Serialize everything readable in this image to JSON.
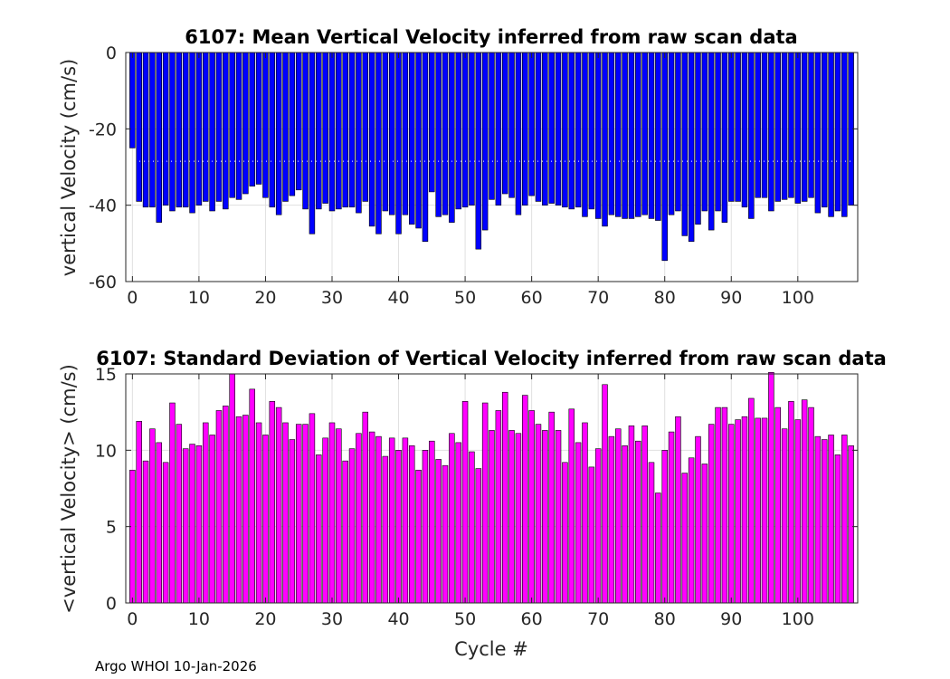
{
  "footer": "Argo WHOI 10-Jan-2026",
  "chart_data": [
    {
      "type": "bar",
      "title": "6107: Mean Vertical Velocity inferred from raw scan data",
      "xlabel": "",
      "ylabel": "vertical Velocity (cm/s)",
      "xlim": [
        -1,
        109
      ],
      "ylim": [
        -60,
        0
      ],
      "xticks": [
        0,
        10,
        20,
        30,
        40,
        50,
        60,
        70,
        80,
        90,
        100
      ],
      "yticks": [
        -60,
        -40,
        -20,
        0
      ],
      "grid": true,
      "bar_color": "#0000ff",
      "reference_line": -28.5,
      "x": [
        0,
        1,
        2,
        3,
        4,
        5,
        6,
        7,
        8,
        9,
        10,
        11,
        12,
        13,
        14,
        15,
        16,
        17,
        18,
        19,
        20,
        21,
        22,
        23,
        24,
        25,
        26,
        27,
        28,
        29,
        30,
        31,
        32,
        33,
        34,
        35,
        36,
        37,
        38,
        39,
        40,
        41,
        42,
        43,
        44,
        45,
        46,
        47,
        48,
        49,
        50,
        51,
        52,
        53,
        54,
        55,
        56,
        57,
        58,
        59,
        60,
        61,
        62,
        63,
        64,
        65,
        66,
        67,
        68,
        69,
        70,
        71,
        72,
        73,
        74,
        75,
        76,
        77,
        78,
        79,
        80,
        81,
        82,
        83,
        84,
        85,
        86,
        87,
        88,
        89,
        90,
        91,
        92,
        93,
        94,
        95,
        96,
        97,
        98,
        99,
        100,
        101,
        102,
        103,
        104,
        105,
        106,
        107,
        108
      ],
      "values": [
        -25,
        -39,
        -40.5,
        -40.5,
        -44.5,
        -40,
        -41.5,
        -40.5,
        -40.5,
        -42,
        -40,
        -39,
        -41.5,
        -39,
        -41,
        -38,
        -38.5,
        -37,
        -35,
        -34.5,
        -38,
        -40.5,
        -42.5,
        -39,
        -37.5,
        -36,
        -41,
        -47.5,
        -41,
        -39.5,
        -41.5,
        -41,
        -40.5,
        -40.5,
        -42,
        -39,
        -45.5,
        -47.5,
        -41.5,
        -42.5,
        -47.5,
        -42.5,
        -45,
        -46,
        -49.5,
        -36.5,
        -43,
        -42.5,
        -44.5,
        -41,
        -40.5,
        -40,
        -51.5,
        -46.5,
        -38.5,
        -40,
        -37,
        -38,
        -42.5,
        -40,
        -37.5,
        -39,
        -40,
        -39.5,
        -40,
        -40.5,
        -41,
        -40.5,
        -43,
        -41,
        -43.5,
        -45.5,
        -42.5,
        -43,
        -43.5,
        -43.5,
        -43,
        -42.5,
        -43.5,
        -44,
        -54.5,
        -42.5,
        -41.5,
        -48,
        -49.5,
        -45,
        -41.5,
        -46.5,
        -41.5,
        -44.5,
        -39,
        -39,
        -40.5,
        -43.5,
        -38,
        -38,
        -41.5,
        -39,
        -38.5,
        -38,
        -39.5,
        -39,
        -38,
        -42,
        -40.5,
        -43,
        -41.5,
        -43,
        -40
      ]
    },
    {
      "type": "bar",
      "title": "6107: Standard Deviation of Vertical Velocity inferred from raw scan data",
      "xlabel": "Cycle #",
      "ylabel": "<vertical Velocity> (cm/s)",
      "xlim": [
        -1,
        109
      ],
      "ylim": [
        0,
        15
      ],
      "xticks": [
        0,
        10,
        20,
        30,
        40,
        50,
        60,
        70,
        80,
        90,
        100
      ],
      "yticks": [
        0,
        5,
        10,
        15
      ],
      "grid": true,
      "bar_color": "#ff00ff",
      "x": [
        0,
        1,
        2,
        3,
        4,
        5,
        6,
        7,
        8,
        9,
        10,
        11,
        12,
        13,
        14,
        15,
        16,
        17,
        18,
        19,
        20,
        21,
        22,
        23,
        24,
        25,
        26,
        27,
        28,
        29,
        30,
        31,
        32,
        33,
        34,
        35,
        36,
        37,
        38,
        39,
        40,
        41,
        42,
        43,
        44,
        45,
        46,
        47,
        48,
        49,
        50,
        51,
        52,
        53,
        54,
        55,
        56,
        57,
        58,
        59,
        60,
        61,
        62,
        63,
        64,
        65,
        66,
        67,
        68,
        69,
        70,
        71,
        72,
        73,
        74,
        75,
        76,
        77,
        78,
        79,
        80,
        81,
        82,
        83,
        84,
        85,
        86,
        87,
        88,
        89,
        90,
        91,
        92,
        93,
        94,
        95,
        96,
        97,
        98,
        99,
        100,
        101,
        102,
        103,
        104,
        105,
        106,
        107,
        108
      ],
      "values": [
        8.7,
        11.9,
        9.3,
        11.4,
        10.5,
        9.2,
        13.1,
        11.7,
        10.1,
        10.4,
        10.3,
        11.8,
        11.0,
        12.6,
        12.9,
        15.0,
        12.2,
        12.3,
        14.0,
        11.8,
        11.0,
        13.2,
        12.8,
        11.8,
        10.7,
        11.7,
        11.7,
        12.4,
        9.7,
        10.8,
        11.8,
        11.4,
        9.3,
        10.1,
        11.1,
        12.5,
        11.2,
        10.9,
        9.6,
        10.8,
        10.0,
        10.8,
        10.3,
        8.7,
        10.0,
        10.6,
        9.4,
        9.0,
        11.1,
        10.5,
        13.2,
        9.9,
        8.8,
        13.1,
        11.3,
        12.6,
        13.8,
        11.3,
        11.1,
        13.6,
        12.6,
        11.7,
        11.3,
        12.5,
        11.3,
        9.2,
        12.7,
        10.5,
        11.8,
        8.9,
        10.1,
        14.3,
        10.9,
        11.4,
        10.3,
        11.6,
        10.6,
        11.6,
        9.2,
        7.2,
        10.0,
        11.2,
        12.2,
        8.5,
        9.5,
        10.9,
        9.1,
        11.7,
        12.8,
        12.8,
        11.7,
        12.0,
        12.2,
        13.4,
        12.1,
        12.1,
        15.1,
        12.8,
        11.4,
        13.2,
        12.0,
        13.3,
        12.8,
        10.9,
        10.7,
        11.0,
        9.7,
        11.0,
        10.3
      ]
    }
  ]
}
